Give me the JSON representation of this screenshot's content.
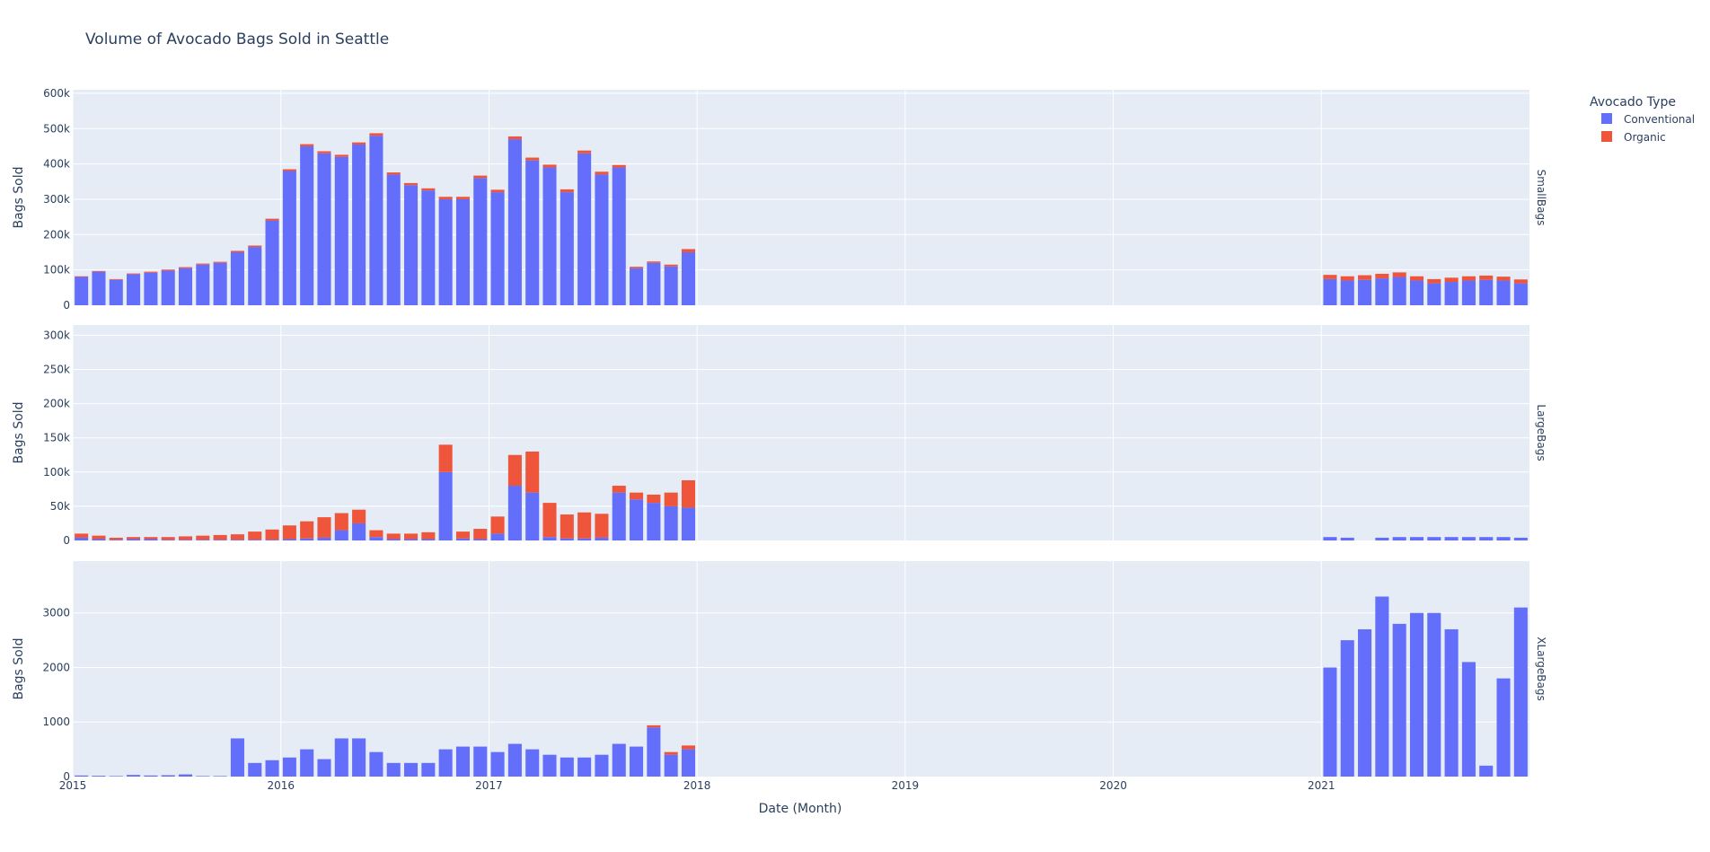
{
  "chart_data": {
    "type": "bar",
    "barmode": "stack",
    "title": "Volume of Avocado Bags Sold in Seattle",
    "xlabel": "Date (Month)",
    "ylabel": "Bags Sold",
    "legend": {
      "title": "Avocado Type",
      "placement": "right",
      "entries": [
        {
          "name": "Conventional",
          "color": "#636efa"
        },
        {
          "name": "Organic",
          "color": "#ef553b"
        }
      ]
    },
    "x_ticks": [
      "2015",
      "2016",
      "2017",
      "2018",
      "2019",
      "2020",
      "2021"
    ],
    "xlim": [
      "2015-01",
      "2021-12"
    ],
    "grid": true,
    "plot_bg": "#e5ecf6",
    "panels": [
      {
        "facet_label": "SmallBags",
        "ylim": [
          0,
          610000
        ],
        "y_ticks": [
          {
            "value": 0,
            "label": "0"
          },
          {
            "value": 100000,
            "label": "100k"
          },
          {
            "value": 200000,
            "label": "200k"
          },
          {
            "value": 300000,
            "label": "300k"
          },
          {
            "value": 400000,
            "label": "400k"
          },
          {
            "value": 500000,
            "label": "500k"
          },
          {
            "value": 600000,
            "label": "600k"
          }
        ],
        "monthly_conventional": {
          "2015": [
            80000,
            95000,
            72000,
            88000,
            92000,
            98000,
            105000,
            115000,
            120000,
            150000,
            165000,
            240000
          ],
          "2016": [
            380000,
            450000,
            430000,
            420000,
            455000,
            480000,
            370000,
            340000,
            325000,
            300000,
            300000,
            360000
          ],
          "2017": [
            320000,
            470000,
            410000,
            390000,
            320000,
            430000,
            370000,
            390000,
            105000,
            120000,
            110000,
            150000
          ],
          "2021": [
            74000,
            70000,
            72000,
            76000,
            80000,
            70000,
            62000,
            66000,
            70000,
            72000,
            70000,
            62000
          ]
        },
        "monthly_organic": {
          "2015": [
            2000,
            2000,
            2000,
            2000,
            3000,
            3000,
            3000,
            3000,
            3000,
            4000,
            4000,
            5000
          ],
          "2016": [
            5000,
            6000,
            6000,
            6000,
            6000,
            7000,
            6000,
            6000,
            6000,
            7000,
            7000,
            7000
          ],
          "2017": [
            7000,
            8000,
            8000,
            8000,
            8000,
            8000,
            8000,
            7000,
            4000,
            4000,
            5000,
            9000
          ],
          "2021": [
            12000,
            12000,
            13000,
            13000,
            13000,
            12000,
            12000,
            12000,
            12000,
            12000,
            11000,
            11000
          ]
        }
      },
      {
        "facet_label": "LargeBags",
        "ylim": [
          0,
          315000
        ],
        "y_ticks": [
          {
            "value": 0,
            "label": "0"
          },
          {
            "value": 50000,
            "label": "50k"
          },
          {
            "value": 100000,
            "label": "100k"
          },
          {
            "value": 150000,
            "label": "150k"
          },
          {
            "value": 200000,
            "label": "200k"
          },
          {
            "value": 250000,
            "label": "250k"
          },
          {
            "value": 300000,
            "label": "300k"
          }
        ],
        "monthly_conventional": {
          "2015": [
            4000,
            2000,
            1000,
            2000,
            2000,
            1000,
            1000,
            1000,
            1000,
            1000,
            1000,
            1000
          ],
          "2016": [
            2000,
            3000,
            4000,
            15000,
            25000,
            5000,
            2000,
            2000,
            2000,
            100000,
            3000,
            2000
          ],
          "2017": [
            10000,
            80000,
            70000,
            5000,
            3000,
            3000,
            4000,
            70000,
            60000,
            55000,
            50000,
            48000
          ],
          "2021": [
            5000,
            4000,
            0,
            4000,
            5000,
            5000,
            5000,
            5000,
            5000,
            5000,
            5000,
            4000
          ]
        },
        "monthly_organic": {
          "2015": [
            6000,
            5000,
            3000,
            3000,
            3000,
            4000,
            5000,
            6000,
            7000,
            8000,
            12000,
            15000
          ],
          "2016": [
            20000,
            25000,
            30000,
            25000,
            20000,
            10000,
            8000,
            8000,
            10000,
            40000,
            10000,
            15000
          ],
          "2017": [
            25000,
            45000,
            60000,
            50000,
            35000,
            38000,
            35000,
            10000,
            10000,
            12000,
            20000,
            40000
          ],
          "2021": [
            0,
            0,
            0,
            0,
            0,
            0,
            0,
            0,
            0,
            0,
            0,
            0
          ]
        }
      },
      {
        "facet_label": "XLargeBags",
        "ylim": [
          0,
          3950
        ],
        "y_ticks": [
          {
            "value": 0,
            "label": "0"
          },
          {
            "value": 1000,
            "label": "1000"
          },
          {
            "value": 2000,
            "label": "2000"
          },
          {
            "value": 3000,
            "label": "3000"
          }
        ],
        "monthly_conventional": {
          "2015": [
            20,
            15,
            10,
            30,
            20,
            25,
            40,
            10,
            10,
            700,
            250,
            300
          ],
          "2016": [
            350,
            500,
            320,
            700,
            700,
            450,
            250,
            250,
            250,
            500,
            550,
            550
          ],
          "2017": [
            450,
            600,
            500,
            400,
            350,
            350,
            400,
            600,
            550,
            900,
            400,
            500
          ],
          "2021": [
            2000,
            2500,
            2700,
            3300,
            2800,
            3000,
            3000,
            2700,
            2100,
            200,
            1800,
            3100
          ]
        },
        "monthly_organic": {
          "2015": [
            0,
            0,
            0,
            0,
            0,
            0,
            0,
            0,
            0,
            0,
            0,
            0
          ],
          "2016": [
            0,
            0,
            0,
            0,
            0,
            0,
            0,
            0,
            0,
            0,
            0,
            0
          ],
          "2017": [
            0,
            0,
            0,
            0,
            0,
            0,
            0,
            0,
            0,
            40,
            50,
            70
          ],
          "2021": [
            0,
            0,
            0,
            0,
            0,
            0,
            0,
            0,
            0,
            0,
            0,
            0
          ]
        }
      }
    ]
  }
}
